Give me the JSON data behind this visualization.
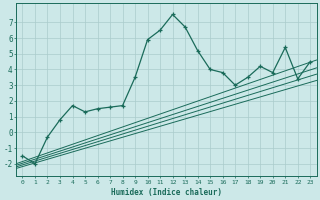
{
  "xlabel": "Humidex (Indice chaleur)",
  "ylabel": "",
  "xlim": [
    -0.5,
    23.5
  ],
  "ylim": [
    -2.8,
    8.2
  ],
  "yticks": [
    -2,
    -1,
    0,
    1,
    2,
    3,
    4,
    5,
    6,
    7
  ],
  "xticks": [
    0,
    1,
    2,
    3,
    4,
    5,
    6,
    7,
    8,
    9,
    10,
    11,
    12,
    13,
    14,
    15,
    16,
    17,
    18,
    19,
    20,
    21,
    22,
    23
  ],
  "bg_color": "#cce8e8",
  "grid_color": "#aacccc",
  "line_color": "#1a6b5a",
  "line1_x": [
    0,
    1,
    2,
    3,
    4,
    5,
    6,
    7,
    8,
    9,
    10,
    11,
    12,
    13,
    14,
    15,
    16,
    17,
    18,
    19,
    20,
    21,
    22,
    23
  ],
  "line1_y": [
    -1.5,
    -2.0,
    -0.3,
    0.8,
    1.7,
    1.3,
    1.5,
    1.6,
    1.7,
    3.5,
    5.9,
    6.5,
    7.5,
    6.7,
    5.2,
    4.0,
    3.8,
    3.0,
    3.5,
    4.2,
    3.8,
    5.4,
    3.4,
    4.5
  ],
  "reg_lines": [
    {
      "x": [
        -0.5,
        23.5
      ],
      "y": [
        -2.0,
        4.6
      ]
    },
    {
      "x": [
        -0.5,
        23.5
      ],
      "y": [
        -2.1,
        4.1
      ]
    },
    {
      "x": [
        -0.5,
        23.5
      ],
      "y": [
        -2.2,
        3.7
      ]
    },
    {
      "x": [
        -0.5,
        23.5
      ],
      "y": [
        -2.3,
        3.3
      ]
    }
  ]
}
